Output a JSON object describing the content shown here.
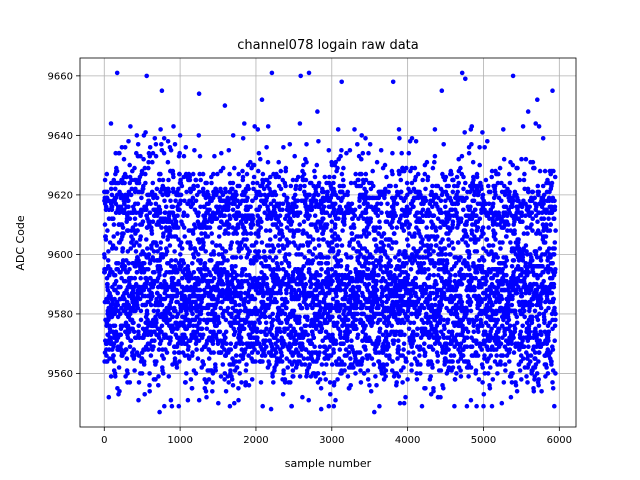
{
  "chart_data": {
    "type": "scatter",
    "title": "channel078 logain raw data",
    "xlabel": "sample number",
    "ylabel": "ADC Code",
    "xlim": [
      -320,
      6220
    ],
    "ylim": [
      9542,
      9666
    ],
    "xticks": [
      0,
      1000,
      2000,
      3000,
      4000,
      5000,
      6000
    ],
    "yticks": [
      9560,
      9580,
      9600,
      9620,
      9640,
      9660
    ],
    "grid": true,
    "marker_color": "#0000ff",
    "n_points": 5952,
    "y_distribution": {
      "description_of_band": "dense band",
      "band_low": 9556,
      "band_high": 9632,
      "outlier_min": 9547,
      "outlier_max": 9661
    },
    "series": [
      {
        "values_sample": [
          [
            0,
            9600
          ],
          [
            40,
            9621
          ],
          [
            90,
            9559
          ],
          [
            170,
            9661
          ],
          [
            230,
            9566
          ],
          [
            300,
            9612
          ],
          [
            560,
            9660
          ],
          [
            640,
            9576
          ],
          [
            730,
            9547
          ],
          [
            760,
            9655
          ],
          [
            1000,
            9640
          ],
          [
            1250,
            9654
          ],
          [
            1420,
            9571
          ],
          [
            1590,
            9650
          ],
          [
            1700,
            9640
          ],
          [
            2080,
            9652
          ],
          [
            2200,
            9548
          ],
          [
            2210,
            9661
          ],
          [
            2590,
            9660
          ],
          [
            2700,
            9661
          ],
          [
            2810,
            9648
          ],
          [
            2860,
            9548
          ],
          [
            2960,
            9549
          ],
          [
            3130,
            9658
          ],
          [
            3560,
            9547
          ],
          [
            3810,
            9658
          ],
          [
            3900,
            9550
          ],
          [
            4190,
            9549
          ],
          [
            4450,
            9655
          ],
          [
            4720,
            9661
          ],
          [
            4760,
            9659
          ],
          [
            4910,
            9549
          ],
          [
            5000,
            9549
          ],
          [
            5390,
            9660
          ],
          [
            5590,
            9648
          ],
          [
            5710,
            9652
          ],
          [
            5910,
            9655
          ],
          [
            5920,
            9555
          ]
        ]
      }
    ]
  }
}
